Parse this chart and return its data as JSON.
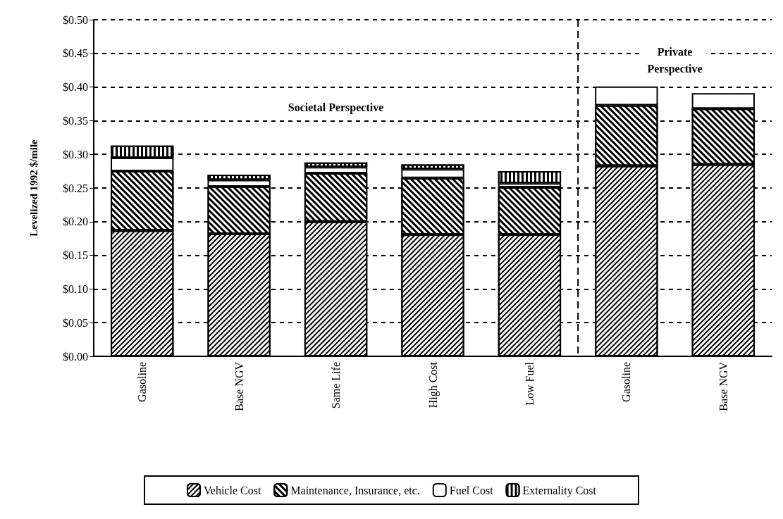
{
  "chart_data": {
    "type": "bar",
    "stacked": true,
    "ylabel": "Levelized 1992 $/mile",
    "categories": [
      "Gasoline",
      "Base NGV",
      "Same Life",
      "High Cost",
      "Low Fuel",
      "Gasoline",
      "Base NGV"
    ],
    "series": [
      {
        "name": "Vehicle Cost",
        "color": "#000000",
        "values": [
          0.187,
          0.182,
          0.2,
          0.181,
          0.181,
          0.283,
          0.285
        ]
      },
      {
        "name": "Maintenance, Insurance, etc.",
        "color": "#000000",
        "values": [
          0.088,
          0.07,
          0.072,
          0.084,
          0.07,
          0.09,
          0.083
        ]
      },
      {
        "name": "Fuel Cost",
        "color": "#ffffff",
        "values": [
          0.02,
          0.01,
          0.009,
          0.013,
          0.006,
          0.028,
          0.023
        ]
      },
      {
        "name": "Externality Cost",
        "color": "#000000",
        "values": [
          0.018,
          0.008,
          0.007,
          0.007,
          0.018,
          null,
          null
        ]
      }
    ],
    "ylim": [
      0,
      0.5
    ],
    "yticks": [
      {
        "value": 0,
        "label": "$0.00"
      },
      {
        "value": 0.05,
        "label": "$0.05"
      },
      {
        "value": 0.1,
        "label": "$0.10"
      },
      {
        "value": 0.15,
        "label": "$0.15"
      },
      {
        "value": 0.2,
        "label": "$0.20"
      },
      {
        "value": 0.25,
        "label": "$0.25"
      },
      {
        "value": 0.3,
        "label": "$0.30"
      },
      {
        "value": 0.35,
        "label": "$0.35"
      },
      {
        "value": 0.4,
        "label": "$0.40"
      },
      {
        "value": 0.45,
        "label": "$0.45"
      },
      {
        "value": 0.5,
        "label": "$0.50"
      }
    ],
    "grid": "y",
    "legend": "bottom",
    "annotations": [
      "Societal Perspective",
      "Private\nPerspective"
    ]
  }
}
